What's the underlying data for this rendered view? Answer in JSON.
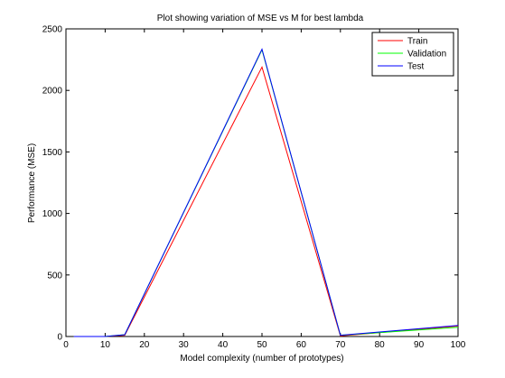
{
  "chart_data": {
    "type": "line",
    "title": "Plot showing variation of MSE vs M for best lambda",
    "xlabel": "Model complexity (number of prototypes)",
    "ylabel": "Performance (MSE)",
    "xlim": [
      0,
      100
    ],
    "ylim": [
      0,
      2500
    ],
    "xticks": [
      0,
      10,
      20,
      30,
      40,
      50,
      60,
      70,
      80,
      90,
      100
    ],
    "yticks": [
      0,
      500,
      1000,
      1500,
      2000,
      2500
    ],
    "grid": false,
    "legend_position": "top-right",
    "x": [
      2,
      10,
      15,
      50,
      70,
      100
    ],
    "series": [
      {
        "name": "Train",
        "color": "#ff0000",
        "values": [
          0,
          0,
          10,
          2190,
          5,
          85
        ]
      },
      {
        "name": "Validation",
        "color": "#00ff00",
        "values": [
          0,
          0,
          15,
          2330,
          10,
          75
        ]
      },
      {
        "name": "Test",
        "color": "#0000ff",
        "values": [
          0,
          0,
          15,
          2335,
          10,
          90
        ]
      }
    ]
  }
}
